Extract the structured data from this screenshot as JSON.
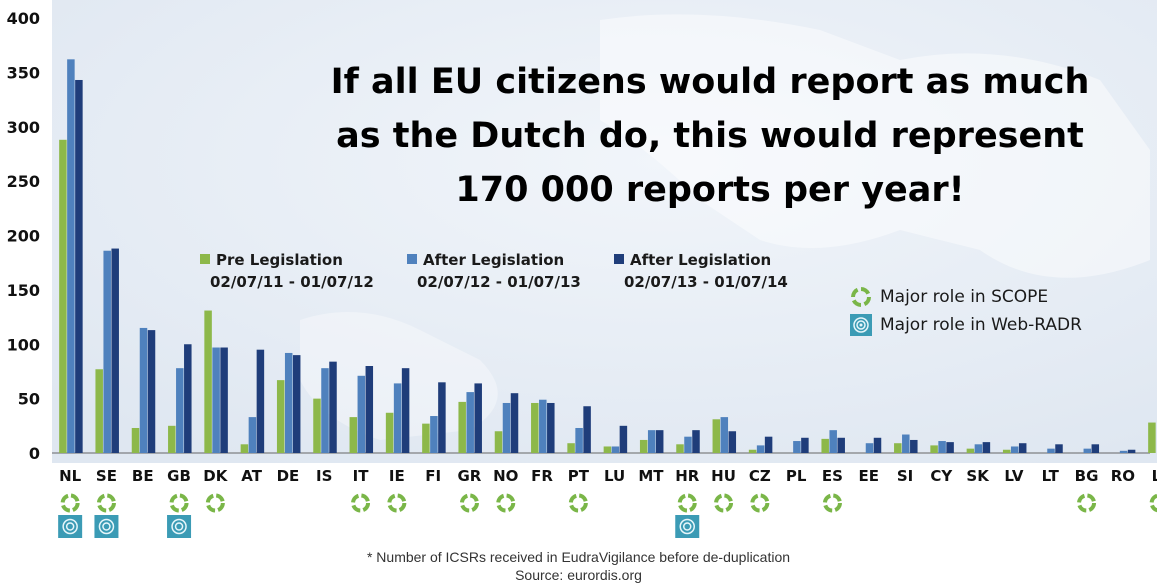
{
  "headline": {
    "line1": "If all EU citizens would report as much",
    "line2": "as the Dutch do, this would represent",
    "line3": "170 000 reports per year!"
  },
  "chart_data": {
    "type": "bar",
    "categories": [
      "NL",
      "SE",
      "BE",
      "GB",
      "DK",
      "AT",
      "DE",
      "IS",
      "IT",
      "IE",
      "FI",
      "GR",
      "NO",
      "FR",
      "PT",
      "LU",
      "MT",
      "HR",
      "HU",
      "CZ",
      "PL",
      "ES",
      "EE",
      "SI",
      "CY",
      "SK",
      "LV",
      "LT",
      "BG",
      "RO",
      "LI"
    ],
    "series": [
      {
        "name": "Pre Legislation",
        "period": "02/07/11 - 01/07/12",
        "color": "#8db84a",
        "values": [
          288,
          77,
          23,
          25,
          131,
          8,
          67,
          50,
          33,
          37,
          27,
          47,
          20,
          46,
          9,
          6,
          12,
          8,
          31,
          3,
          0,
          13,
          0,
          9,
          7,
          4,
          3,
          0,
          0,
          0,
          28
        ]
      },
      {
        "name": "After Legislation",
        "period": "02/07/12 - 01/07/13",
        "color": "#4f81bd",
        "values": [
          362,
          186,
          115,
          78,
          97,
          33,
          92,
          78,
          71,
          64,
          34,
          56,
          46,
          49,
          23,
          6,
          21,
          15,
          33,
          7,
          11,
          21,
          9,
          17,
          11,
          8,
          6,
          4,
          4,
          2,
          0
        ]
      },
      {
        "name": "After Legislation",
        "period": "02/07/13 - 01/07/14",
        "color": "#1f3d7a",
        "values": [
          343,
          188,
          113,
          100,
          97,
          95,
          90,
          84,
          80,
          78,
          65,
          64,
          55,
          46,
          43,
          25,
          21,
          21,
          20,
          15,
          14,
          14,
          14,
          12,
          10,
          10,
          9,
          8,
          8,
          3,
          0
        ]
      }
    ],
    "ylim": [
      0,
      400
    ],
    "yticks": [
      0,
      50,
      100,
      150,
      200,
      250,
      300,
      350,
      400
    ],
    "grid": false,
    "legend_position": "middle-left",
    "scope_role": [
      "NL",
      "SE",
      "GB",
      "DK",
      "IT",
      "IE",
      "GR",
      "NO",
      "PT",
      "HR",
      "HU",
      "CZ",
      "ES",
      "BG",
      "LI"
    ],
    "webradr_role": [
      "NL",
      "SE",
      "GB",
      "HR"
    ]
  },
  "role_legend": {
    "scope": "Major role in SCOPE",
    "webradr": "Major role in Web-RADR"
  },
  "footer": {
    "note": "* Number of ICSRs received in EudraVigilance before de-duplication",
    "source": "Source: eurordis.org"
  },
  "colors": {
    "scope_icon": "#7ab648",
    "webradr_icon": "#3b9bb5"
  }
}
